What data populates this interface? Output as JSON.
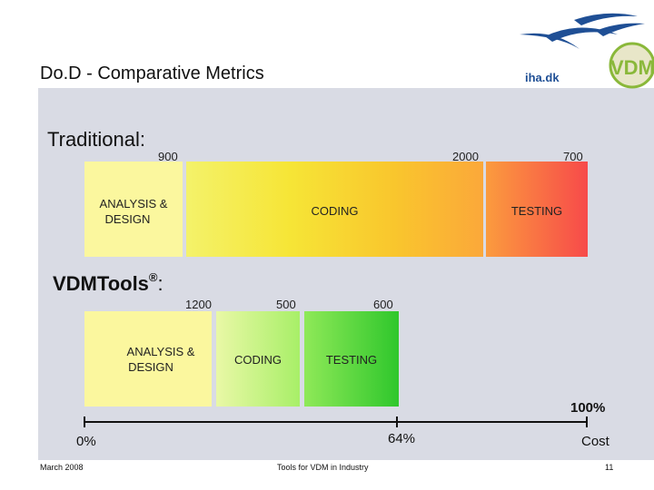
{
  "slide": {
    "title": "Do.D - Comparative Metrics",
    "logo_text": "iha.dk",
    "logo_letters": "VDM"
  },
  "traditional": {
    "label": "Traditional:",
    "analysis": {
      "value": "900",
      "label_line1": "ANALYSIS &",
      "label_line2": "DESIGN"
    },
    "coding": {
      "value": "2000",
      "label": "CODING"
    },
    "testing": {
      "value": "700",
      "label": "TESTING"
    }
  },
  "vdmtools": {
    "label": "VDMTools",
    "registered_mark": "®",
    "label_suffix": ":",
    "analysis": {
      "value": "1200",
      "label_line1": "ANALYSIS &",
      "label_line2": "DESIGN"
    },
    "coding": {
      "value": "500",
      "label": "CODING"
    },
    "testing": {
      "value": "600",
      "label": "TESTING"
    }
  },
  "scale": {
    "start": "0%",
    "mid": "64%",
    "end": "100%",
    "axis_label": "Cost"
  },
  "footer": {
    "date": "March 2008",
    "center": "Tools for VDM in Industry",
    "page": "11"
  },
  "colors": {
    "panel": "#d9dbe4",
    "analysis": "#fbf79e",
    "logo_blue": "#1f4f95",
    "logo_green": "#8ab83a"
  }
}
